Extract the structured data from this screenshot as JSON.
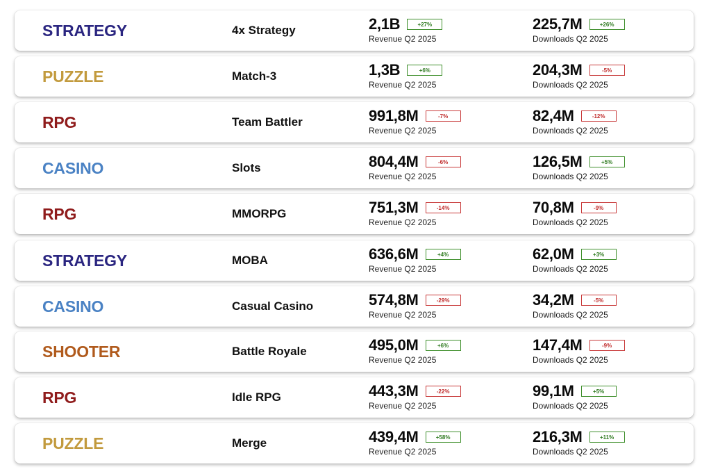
{
  "colors": {
    "strategy": "#2a2580",
    "puzzle": "#c29a3d",
    "rpg": "#8f1b1b",
    "casino": "#4a82c4",
    "shooter": "#b05a1c",
    "badge_up": "#3f8f2c",
    "badge_down": "#c83a3a"
  },
  "rows": [
    {
      "genre": "STRATEGY",
      "genre_color": "#2a2580",
      "subgenre": "4x Strategy",
      "revenue": "2,1B",
      "revenue_change": "+27%",
      "revenue_trend": "up",
      "revenue_label": "Revenue Q2 2025",
      "downloads": "225,7M",
      "downloads_change": "+26%",
      "downloads_trend": "up",
      "downloads_label": "Downloads Q2 2025"
    },
    {
      "genre": "PUZZLE",
      "genre_color": "#c29a3d",
      "subgenre": "Match-3",
      "revenue": "1,3B",
      "revenue_change": "+6%",
      "revenue_trend": "up",
      "revenue_label": "Revenue Q2 2025",
      "downloads": "204,3M",
      "downloads_change": "-5%",
      "downloads_trend": "down",
      "downloads_label": "Downloads Q2 2025"
    },
    {
      "genre": "RPG",
      "genre_color": "#8f1b1b",
      "subgenre": "Team Battler",
      "revenue": "991,8M",
      "revenue_change": "-7%",
      "revenue_trend": "down",
      "revenue_label": "Revenue Q2 2025",
      "downloads": "82,4M",
      "downloads_change": "-12%",
      "downloads_trend": "down",
      "downloads_label": "Downloads Q2 2025"
    },
    {
      "genre": "CASINO",
      "genre_color": "#4a82c4",
      "subgenre": "Slots",
      "revenue": "804,4M",
      "revenue_change": "-6%",
      "revenue_trend": "down",
      "revenue_label": "Revenue Q2 2025",
      "downloads": "126,5M",
      "downloads_change": "+5%",
      "downloads_trend": "up",
      "downloads_label": "Downloads Q2 2025"
    },
    {
      "genre": "RPG",
      "genre_color": "#8f1b1b",
      "subgenre": "MMORPG",
      "revenue": "751,3M",
      "revenue_change": "-14%",
      "revenue_trend": "down",
      "revenue_label": "Revenue Q2 2025",
      "downloads": "70,8M",
      "downloads_change": "-9%",
      "downloads_trend": "down",
      "downloads_label": "Downloads Q2 2025"
    },
    {
      "genre": "STRATEGY",
      "genre_color": "#2a2580",
      "subgenre": "MOBA",
      "revenue": "636,6M",
      "revenue_change": "+4%",
      "revenue_trend": "up",
      "revenue_label": "Revenue Q2 2025",
      "downloads": "62,0M",
      "downloads_change": "+3%",
      "downloads_trend": "up",
      "downloads_label": "Downloads Q2 2025"
    },
    {
      "genre": "CASINO",
      "genre_color": "#4a82c4",
      "subgenre": "Casual Casino",
      "revenue": "574,8M",
      "revenue_change": "-29%",
      "revenue_trend": "down",
      "revenue_label": "Revenue Q2 2025",
      "downloads": "34,2M",
      "downloads_change": "-5%",
      "downloads_trend": "down",
      "downloads_label": "Downloads Q2 2025"
    },
    {
      "genre": "SHOOTER",
      "genre_color": "#b05a1c",
      "subgenre": "Battle Royale",
      "revenue": "495,0M",
      "revenue_change": "+6%",
      "revenue_trend": "up",
      "revenue_label": "Revenue Q2 2025",
      "downloads": "147,4M",
      "downloads_change": "-9%",
      "downloads_trend": "down",
      "downloads_label": "Downloads Q2 2025"
    },
    {
      "genre": "RPG",
      "genre_color": "#8f1b1b",
      "subgenre": "Idle RPG",
      "revenue": "443,3M",
      "revenue_change": "-22%",
      "revenue_trend": "down",
      "revenue_label": "Revenue Q2 2025",
      "downloads": "99,1M",
      "downloads_change": "+5%",
      "downloads_trend": "up",
      "downloads_label": "Downloads Q2 2025"
    },
    {
      "genre": "PUZZLE",
      "genre_color": "#c29a3d",
      "subgenre": "Merge",
      "revenue": "439,4M",
      "revenue_change": "+58%",
      "revenue_trend": "up",
      "revenue_label": "Revenue Q2 2025",
      "downloads": "216,3M",
      "downloads_change": "+11%",
      "downloads_trend": "up",
      "downloads_label": "Downloads Q2 2025"
    }
  ]
}
